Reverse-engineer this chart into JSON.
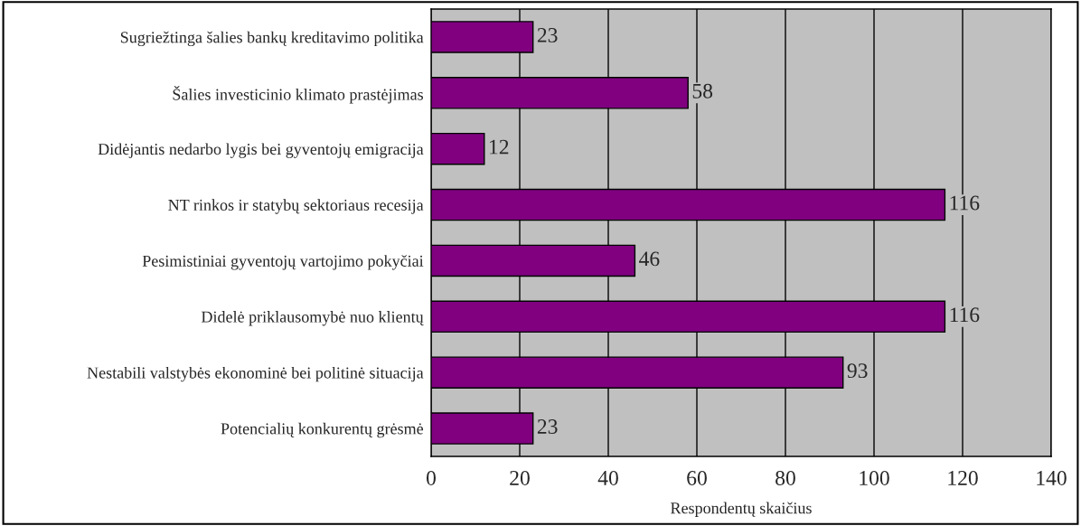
{
  "chart_data": {
    "type": "bar",
    "orientation": "horizontal",
    "xlabel": "Respondentų skaičius",
    "categories": [
      "Sugriežtinga šalies bankų kreditavimo politika",
      "Šalies investicinio klimato prastėjimas",
      "Didėjantis nedarbo lygis bei gyventojų emigracija",
      "NT rinkos ir statybų sektoriaus recesija",
      "Pesimistiniai gyventojų vartojimo pokyčiai",
      "Didelė priklausomybė nuo klientų",
      "Nestabili valstybės ekonominė bei politinė situacija",
      "Potencialių konkurentų grėsmė"
    ],
    "values": [
      23,
      58,
      12,
      116,
      46,
      116,
      93,
      23
    ],
    "color": "#800080",
    "xlim": [
      0,
      140
    ],
    "xticks": [
      0,
      20,
      40,
      60,
      80,
      100,
      120,
      140
    ],
    "grid": "x",
    "data_labels": true,
    "legend": false
  }
}
